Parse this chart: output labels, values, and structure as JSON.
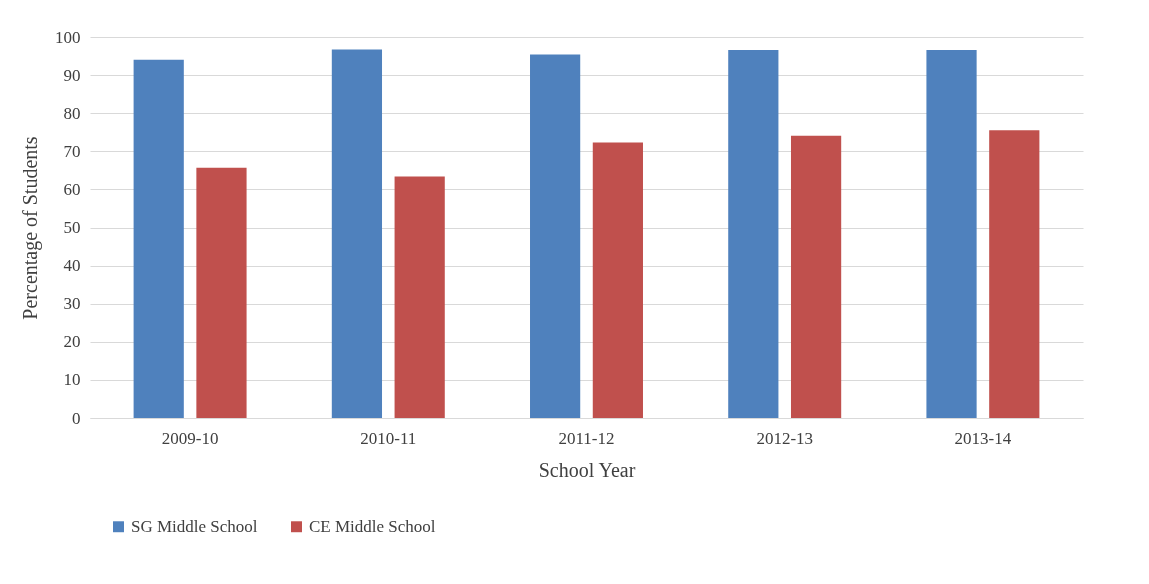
{
  "chart_data": {
    "type": "bar",
    "xlabel": "School Year",
    "ylabel": "Percentage of Students",
    "categories": [
      "2009-10",
      "2010-11",
      "2011-12",
      "2012-13",
      "2013-14"
    ],
    "series": [
      {
        "name": "SG Middle School",
        "color": "#4f81bd",
        "values": [
          94.0,
          96.7,
          95.4,
          96.6,
          96.6
        ]
      },
      {
        "name": "CE Middle School",
        "color": "#c0504d",
        "values": [
          65.7,
          63.4,
          72.3,
          74.1,
          75.5
        ]
      }
    ],
    "ylim": [
      0,
      100
    ],
    "yticks": [
      0,
      10,
      20,
      30,
      40,
      50,
      60,
      70,
      80,
      90,
      100
    ],
    "grid": "y",
    "legend": "bottom"
  }
}
